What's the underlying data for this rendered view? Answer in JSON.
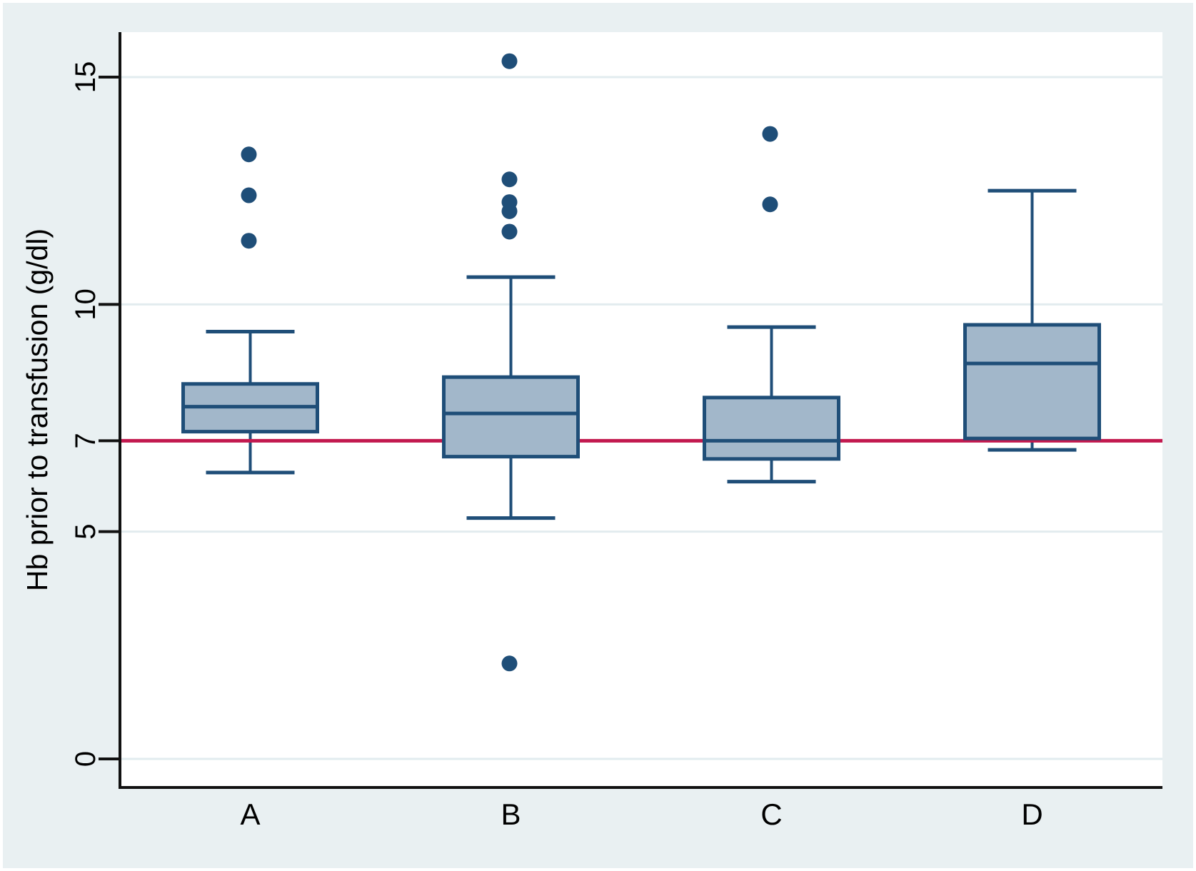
{
  "figure": {
    "background_color": "#E9F0F2",
    "plot_background_color": "#FFFFFF",
    "gridline_color": "#E2ECEF",
    "axis_color": "#111111",
    "text_color": "#000000",
    "box_fill_color": "#A2B7CA",
    "box_stroke_color": "#1F4E78",
    "outlier_color": "#1F4E78",
    "refline_color": "#C2184E"
  },
  "chart_data": {
    "type": "box",
    "title": "",
    "xlabel": "",
    "ylabel": "Hb prior to transfusion (g/dl)",
    "ylim": [
      -0.6,
      16
    ],
    "yticks": [
      0,
      5,
      7,
      10,
      15
    ],
    "grid": "horizontal-light",
    "legend": "none",
    "refline": {
      "value": 7,
      "orientation": "horizontal"
    },
    "categories": [
      "A",
      "B",
      "C",
      "D"
    ],
    "series": [
      {
        "category": "A",
        "whisker_low": 6.3,
        "q1": 7.2,
        "median": 7.75,
        "q3": 8.25,
        "whisker_high": 9.4,
        "outliers": [
          11.4,
          12.4,
          13.3
        ]
      },
      {
        "category": "B",
        "whisker_low": 5.3,
        "q1": 6.65,
        "median": 7.6,
        "q3": 8.4,
        "whisker_high": 10.6,
        "outliers": [
          2.1,
          11.6,
          12.05,
          12.25,
          12.75,
          15.35
        ]
      },
      {
        "category": "C",
        "whisker_low": 6.1,
        "q1": 6.6,
        "median": 7.0,
        "q3": 7.95,
        "whisker_high": 9.5,
        "outliers": [
          12.2,
          13.75
        ]
      },
      {
        "category": "D",
        "whisker_low": 6.8,
        "q1": 7.05,
        "median": 8.7,
        "q3": 9.55,
        "whisker_high": 12.5,
        "outliers": []
      }
    ]
  }
}
